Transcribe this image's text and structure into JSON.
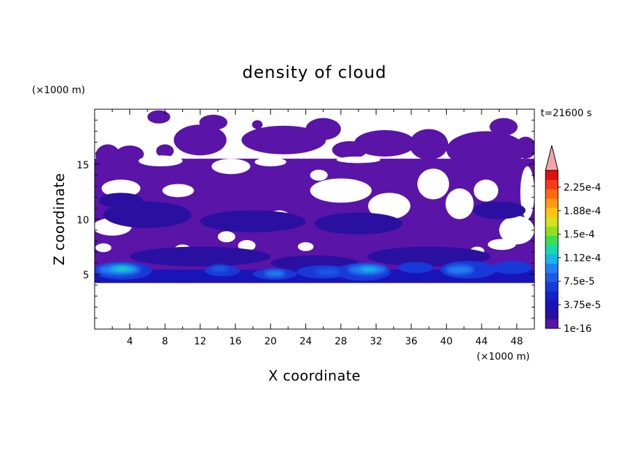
{
  "chart_data": {
    "type": "heatmap",
    "title": "density of cloud",
    "xlabel": "X coordinate",
    "ylabel": "Z coordinate",
    "x_unit": "(×1000 m)",
    "y_unit": "(×1000 m)",
    "time_label": "t=21600 s",
    "xlim": [
      0,
      50
    ],
    "ylim": [
      0,
      20
    ],
    "x_ticks": [
      "4",
      "8",
      "12",
      "16",
      "20",
      "24",
      "28",
      "32",
      "36",
      "40",
      "44",
      "48"
    ],
    "y_ticks": [
      "5",
      "10",
      "15"
    ],
    "colorbar": {
      "tick_labels": [
        "2.25e-4",
        "1.88e-4",
        "1.5e-4",
        "1.12e-4",
        "7.5e-5",
        "3.75e-5",
        "1e-16"
      ],
      "colors": [
        "#5a14a8",
        "#2a10a0",
        "#1a14b8",
        "#1420c8",
        "#1838d8",
        "#1e5ae6",
        "#2080f0",
        "#16b6e8",
        "#18d8b0",
        "#3ae050",
        "#90e020",
        "#d8e020",
        "#ffc410",
        "#ff9a10",
        "#ff6a10",
        "#f83a18",
        "#e01010"
      ],
      "extend_color": "#f4a6a6",
      "extend": "max"
    },
    "cloud_layers": [
      {
        "z_range": [
          4.2,
          15.5
        ],
        "level": "1e-16",
        "coverage": "broken, with clear gaps"
      },
      {
        "z_range": [
          4.2,
          6.5
        ],
        "level": "7.5e-5 to 1.12e-4",
        "coverage": "peaks near x = 2, 20, 30, 42"
      },
      {
        "z_range": [
          15.5,
          19.5
        ],
        "level": "1e-16",
        "coverage": "scattered patches"
      }
    ],
    "grid": false
  }
}
